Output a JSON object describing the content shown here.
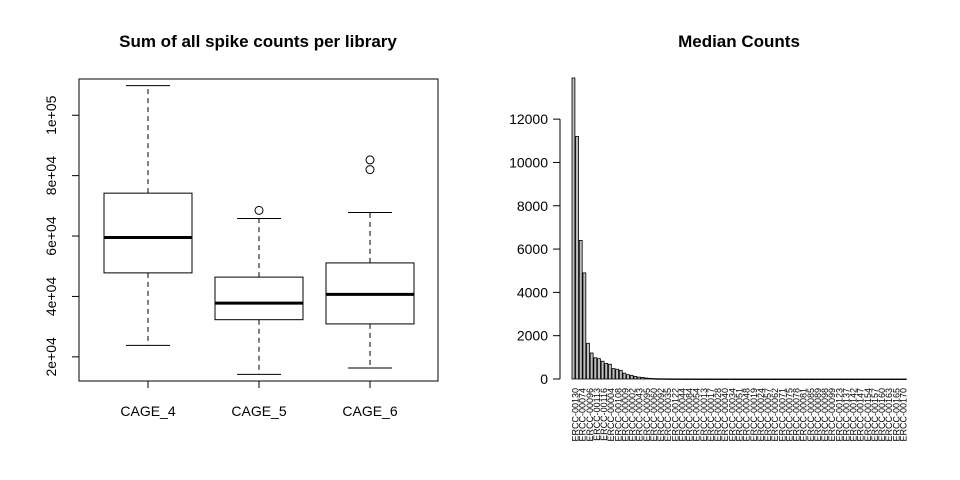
{
  "chart_data": [
    {
      "type": "box",
      "title": "Sum of all spike counts per library",
      "xlabel": "",
      "ylabel": "",
      "ylim": [
        12000,
        112000
      ],
      "yticks": [
        20000,
        40000,
        60000,
        80000,
        100000
      ],
      "ytick_labels": [
        "2e+04",
        "4e+04",
        "6e+04",
        "8e+04",
        "1e+05"
      ],
      "categories": [
        "CAGE_4",
        "CAGE_5",
        "CAGE_6"
      ],
      "boxes": [
        {
          "category": "CAGE_4",
          "min": 23800,
          "q1": 47800,
          "median": 59500,
          "q3": 74200,
          "max": 109800,
          "outliers": []
        },
        {
          "category": "CAGE_5",
          "min": 14200,
          "q1": 32300,
          "median": 37800,
          "q3": 46400,
          "max": 65800,
          "outliers": [
            68500
          ]
        },
        {
          "category": "CAGE_6",
          "min": 16300,
          "q1": 30900,
          "median": 40700,
          "q3": 51100,
          "max": 67800,
          "outliers": [
            82000,
            85200
          ]
        }
      ]
    },
    {
      "type": "bar",
      "title": "Median Counts",
      "xlabel": "",
      "ylabel": "",
      "ylim": [
        0,
        13900
      ],
      "yticks": [
        0,
        2000,
        4000,
        6000,
        8000,
        10000,
        12000
      ],
      "ytick_labels": [
        "0",
        "2000",
        "4000",
        "6000",
        "8000",
        "10000",
        "12000"
      ],
      "bar_color": "#bebebe",
      "values": [
        13900,
        11200,
        6400,
        4900,
        1650,
        1200,
        980,
        940,
        820,
        720,
        680,
        480,
        450,
        400,
        270,
        200,
        170,
        120,
        85,
        70,
        45,
        30,
        22,
        15,
        12,
        10,
        8,
        7,
        6,
        5,
        5,
        4,
        4,
        4,
        3,
        3,
        3,
        3,
        2,
        2,
        2,
        2,
        2,
        2,
        2,
        1,
        1,
        1,
        1,
        1,
        1,
        1,
        1,
        1,
        1,
        1,
        1,
        1,
        1,
        1,
        1,
        1,
        1,
        1,
        1,
        1,
        1,
        1,
        1,
        1,
        1,
        1,
        1,
        1,
        1,
        1,
        1,
        1,
        1,
        1,
        1,
        1,
        1,
        1,
        1,
        1,
        1,
        1,
        1,
        1,
        1,
        1
      ],
      "visible_tick_labels": [
        "ERCC-00130",
        "ERCC-00074",
        "ERCC-00096",
        "ERCC-00113",
        "ERCC-00116",
        "ERCC-00004",
        "ERCC-00108",
        "ERCC-00009",
        "ERCC-00002",
        "ERCC-00043",
        "ERCC-00095",
        "ERCC-00060",
        "ERCC-00092",
        "ERCC-00035",
        "ERCC-00122",
        "ERCC-00044",
        "ERCC-00084",
        "ERCC-00054",
        "ERCC-00013",
        "ERCC-00017",
        "ERCC-00028",
        "ERCC-00040",
        "ERCC-00034",
        "ERCC-00051",
        "ERCC-00048",
        "ERCC-00019",
        "ERCC-00024",
        "ERCC-00057",
        "ERCC-00062",
        "ERCC-00071",
        "ERCC-00075",
        "ERCC-00078",
        "ERCC-00081",
        "ERCC-00085",
        "ERCC-00089",
        "ERCC-00098",
        "ERCC-00099",
        "ERCC-00123",
        "ERCC-00137",
        "ERCC-00142",
        "ERCC-00147",
        "ERCC-00154",
        "ERCC-00157",
        "ERCC-00160",
        "ERCC-00163",
        "ERCC-00165",
        "ERCC-00170"
      ]
    }
  ]
}
